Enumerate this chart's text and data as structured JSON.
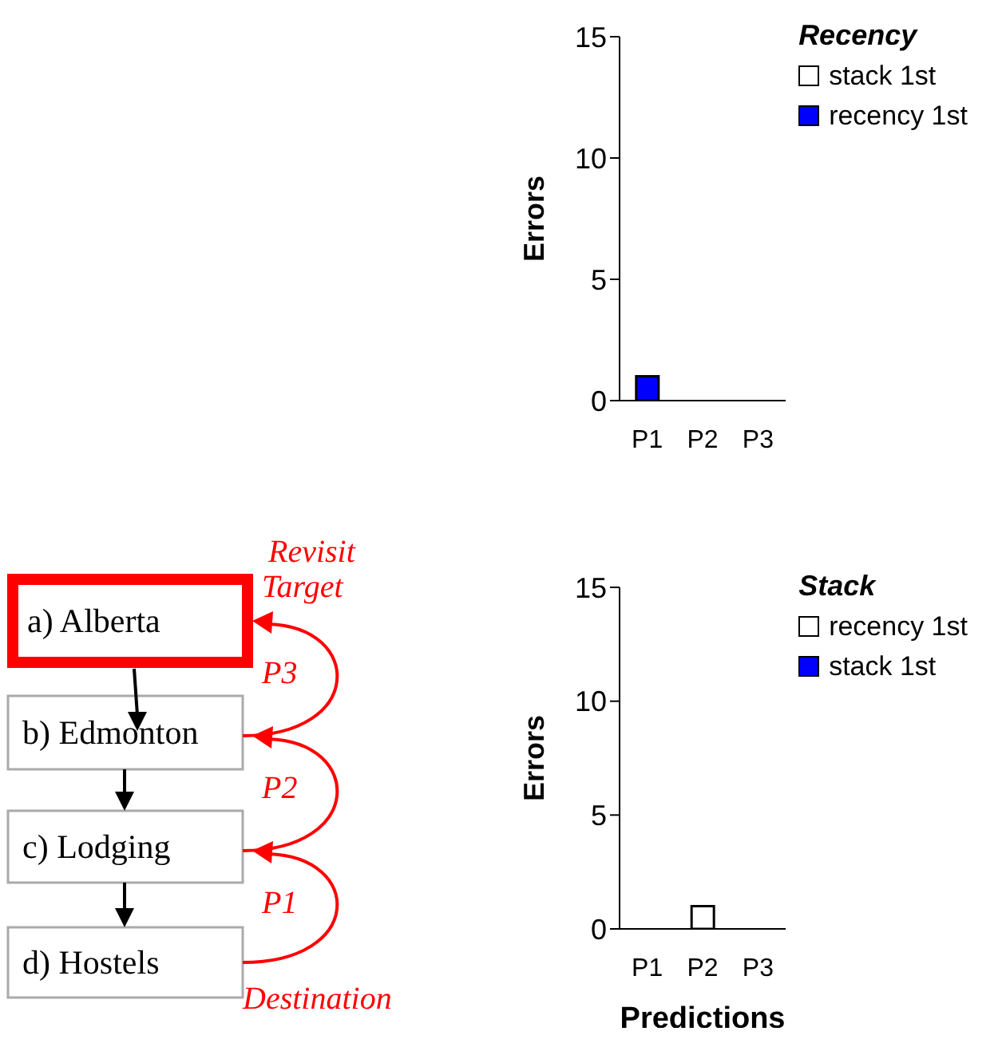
{
  "chart_data": [
    {
      "type": "bar",
      "stacked": true,
      "categories": [
        "P1",
        "P2",
        "P3"
      ],
      "ylabel": "Errors",
      "legend_title": "Recency",
      "legend": "top right",
      "ylim": [
        0,
        15
      ],
      "yticks": [
        0,
        5,
        10,
        15
      ],
      "series": [
        {
          "name": "stack 1st",
          "color": "#ffffff",
          "values": [
            0,
            0,
            0
          ]
        },
        {
          "name": "recency 1st",
          "color": "#0000ff",
          "values": [
            1,
            0,
            0
          ]
        }
      ]
    },
    {
      "type": "other",
      "annotations": [
        "a) Alberta",
        "b) Edmonton",
        "c) Lodging",
        "d) Hostels",
        "Revisit Target",
        "P3",
        "P2",
        "P1",
        "Destination"
      ]
    },
    {
      "type": "bar",
      "stacked": true,
      "categories": [
        "P1",
        "P2",
        "P3"
      ],
      "xlabel": "Predictions",
      "ylabel": "Errors",
      "legend_title": "Stack",
      "legend": "top right",
      "ylim": [
        0,
        15
      ],
      "yticks": [
        0,
        5,
        10,
        15
      ],
      "series": [
        {
          "name": "recency 1st",
          "color": "#ffffff",
          "values": [
            0,
            1,
            0
          ]
        },
        {
          "name": "stack 1st",
          "color": "#0000ff",
          "values": [
            0,
            0,
            0
          ]
        }
      ]
    }
  ]
}
